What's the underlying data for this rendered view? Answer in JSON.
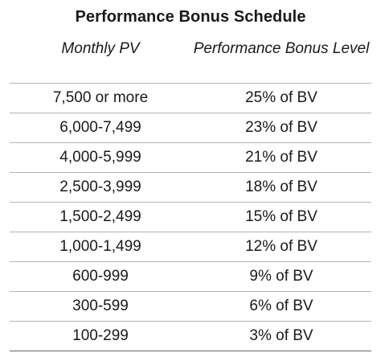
{
  "title": "Performance Bonus Schedule",
  "headers": [
    "Monthly PV",
    "Performance Bonus Level"
  ],
  "rows": [
    {
      "pv": "7,500 or more",
      "level": "25% of BV"
    },
    {
      "pv": "6,000-7,499",
      "level": "23% of BV"
    },
    {
      "pv": "4,000-5,999",
      "level": "21% of BV"
    },
    {
      "pv": "2,500-3,999",
      "level": "18% of BV"
    },
    {
      "pv": "1,500-2,499",
      "level": "15% of BV"
    },
    {
      "pv": "1,000-1,499",
      "level": "12% of BV"
    },
    {
      "pv": "600-999",
      "level": "9% of BV"
    },
    {
      "pv": "300-599",
      "level": "6% of BV"
    },
    {
      "pv": "100-299",
      "level": "3% of BV"
    }
  ]
}
